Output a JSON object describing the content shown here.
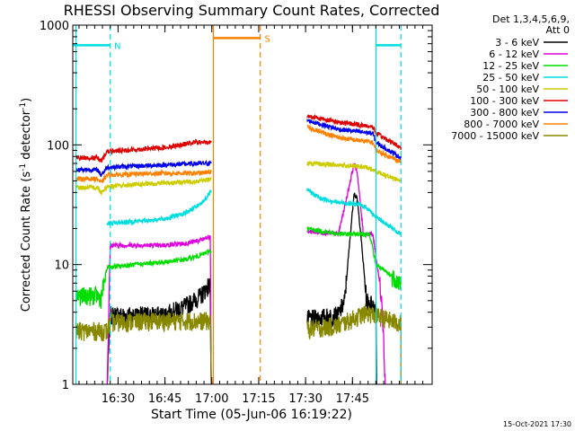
{
  "chart_data": {
    "type": "line",
    "title": "RHESSI Observing Summary Count Rates, Corrected",
    "xlabel": "Start Time (05-Jun-06 16:19:22)",
    "ylabel": "Corrected Count Rate (s⁻¹ detector⁻¹)",
    "ylog": true,
    "ylim": [
      1,
      1000
    ],
    "xlim_minutes": [
      16.0,
      131.0
    ],
    "x_ticks": [
      {
        "m": 30.5,
        "label": "16:30"
      },
      {
        "m": 45.5,
        "label": "16:45"
      },
      {
        "m": 60.5,
        "label": "17:00"
      },
      {
        "m": 75.5,
        "label": "17:15"
      },
      {
        "m": 90.5,
        "label": "17:30"
      },
      {
        "m": 105.5,
        "label": "17:45"
      }
    ],
    "y_ticks": [
      {
        "v": 1,
        "label": "1"
      },
      {
        "v": 10,
        "label": "10"
      },
      {
        "v": 100,
        "label": "100"
      },
      {
        "v": 1000,
        "label": "1000"
      }
    ],
    "legend_header": [
      "Det 1,3,4,5,6,9,",
      "Att 0"
    ],
    "series": [
      {
        "name": "3 - 6 keV",
        "color": "#000000",
        "segments": [
          [
            [
              27,
              1
            ],
            [
              28,
              3.8
            ],
            [
              45,
              3.8
            ],
            [
              52,
              4.5
            ],
            [
              57,
              5.5
            ],
            [
              59,
              6.5
            ],
            [
              60,
              6.8
            ],
            [
              60.3,
              1
            ]
          ],
          [
            [
              91,
              3.5
            ],
            [
              101,
              3.8
            ],
            [
              103,
              5
            ],
            [
              105,
              20
            ],
            [
              106,
              40
            ],
            [
              107,
              35
            ],
            [
              108,
              20
            ],
            [
              110,
              5
            ],
            [
              113,
              4.5
            ],
            [
              113.2,
              1
            ]
          ]
        ]
      },
      {
        "name": "6 - 12 keV",
        "color": "#dd00dd",
        "segments": [
          [
            [
              27,
              1
            ],
            [
              28,
              14.5
            ],
            [
              45,
              14.5
            ],
            [
              52,
              15
            ],
            [
              57,
              16
            ],
            [
              60,
              17
            ],
            [
              60.3,
              1
            ]
          ],
          [
            [
              91,
              19
            ],
            [
              101,
              18
            ],
            [
              104,
              40
            ],
            [
              106,
              70
            ],
            [
              107,
              60
            ],
            [
              109,
              18
            ],
            [
              112,
              18
            ],
            [
              115,
              5
            ],
            [
              116,
              1
            ]
          ]
        ]
      },
      {
        "name": "12 - 25 keV",
        "color": "#00dd00",
        "segments": [
          [
            [
              17,
              5.5
            ],
            [
              24,
              5.5
            ],
            [
              25,
              5.2
            ],
            [
              27,
              9.5
            ],
            [
              45,
              10.5
            ],
            [
              52,
              11
            ],
            [
              57,
              12
            ],
            [
              60,
              13
            ],
            [
              60.3,
              13
            ]
          ],
          [
            [
              91,
              20
            ],
            [
              101,
              18
            ],
            [
              107,
              18
            ],
            [
              111,
              18
            ],
            [
              113,
              10
            ],
            [
              118,
              8
            ],
            [
              121,
              7
            ],
            [
              121,
              7
            ]
          ]
        ]
      },
      {
        "name": "25 - 50 keV",
        "color": "#00dddd",
        "segments": [
          [
            [
              27,
              22
            ],
            [
              45,
              24
            ],
            [
              52,
              27
            ],
            [
              57,
              32
            ],
            [
              60,
              40
            ],
            [
              60.3,
              40
            ]
          ],
          [
            [
              91,
              42
            ],
            [
              95,
              36
            ],
            [
              101,
              33
            ],
            [
              107,
              32
            ],
            [
              110,
              30
            ],
            [
              113,
              25
            ],
            [
              121,
              18
            ],
            [
              121,
              18
            ]
          ]
        ]
      },
      {
        "name": "50 - 100 keV",
        "color": "#cccc00",
        "segments": [
          [
            [
              17,
              44
            ],
            [
              24,
              44
            ],
            [
              25,
              40
            ],
            [
              27,
              45
            ],
            [
              45,
              48
            ],
            [
              57,
              50
            ],
            [
              60,
              52
            ],
            [
              60.3,
              52
            ]
          ],
          [
            [
              91,
              70
            ],
            [
              101,
              68
            ],
            [
              110,
              65
            ],
            [
              113,
              60
            ],
            [
              121,
              50
            ],
            [
              121,
              50
            ]
          ]
        ]
      },
      {
        "name": "100 - 300 keV",
        "color": "#dd0000",
        "segments": [
          [
            [
              17,
              78
            ],
            [
              24,
              78
            ],
            [
              25,
              72
            ],
            [
              27,
              88
            ],
            [
              45,
              95
            ],
            [
              55,
              105
            ],
            [
              60,
              105
            ],
            [
              60.3,
              105
            ]
          ],
          [
            [
              91,
              175
            ],
            [
              101,
              155
            ],
            [
              112,
              142
            ],
            [
              113,
              125
            ],
            [
              121,
              95
            ],
            [
              121,
              95
            ]
          ]
        ]
      },
      {
        "name": "300 - 800 keV",
        "color": "#0000ee",
        "segments": [
          [
            [
              17,
              62
            ],
            [
              24,
              62
            ],
            [
              25,
              56
            ],
            [
              27,
              65
            ],
            [
              45,
              68
            ],
            [
              57,
              70
            ],
            [
              60,
              70
            ],
            [
              60.3,
              70
            ]
          ],
          [
            [
              91,
              160
            ],
            [
              101,
              135
            ],
            [
              112,
              125
            ],
            [
              113,
              105
            ],
            [
              121,
              78
            ],
            [
              121,
              78
            ]
          ]
        ]
      },
      {
        "name": "800 - 7000 keV",
        "color": "#ff8000",
        "segments": [
          [
            [
              17,
              52
            ],
            [
              24,
              52
            ],
            [
              25,
              48
            ],
            [
              27,
              56
            ],
            [
              45,
              58
            ],
            [
              57,
              58
            ],
            [
              60,
              60
            ],
            [
              60.3,
              60
            ]
          ],
          [
            [
              91,
              140
            ],
            [
              101,
              115
            ],
            [
              112,
              105
            ],
            [
              113,
              90
            ],
            [
              121,
              72
            ],
            [
              121,
              72
            ]
          ]
        ]
      },
      {
        "name": "7000 - 15000 keV",
        "color": "#888800",
        "segments": [
          [
            [
              17,
              2.8
            ],
            [
              27,
              2.8
            ],
            [
              28,
              3.3
            ],
            [
              45,
              3.4
            ],
            [
              60,
              3.4
            ],
            [
              60.3,
              1
            ]
          ],
          [
            [
              91,
              2.9
            ],
            [
              101,
              3.1
            ],
            [
              110,
              4.0
            ],
            [
              121,
              3.2
            ],
            [
              121,
              1
            ]
          ]
        ]
      }
    ],
    "markers": [
      {
        "label": "N",
        "color": "#00dddd",
        "level": 680,
        "spans": [
          [
            16,
            28
          ]
        ],
        "solid_x": [
          17,
          113
        ],
        "dashed_x": [
          28,
          121
        ],
        "bars": [
          [
            113,
            121
          ]
        ]
      },
      {
        "label": "S",
        "color": "#ff8000",
        "level": 780,
        "spans": [
          [
            61,
            76
          ]
        ],
        "solid_x": [
          61
        ],
        "dashed_x": [
          76
        ]
      }
    ]
  },
  "footer": {
    "date": "15-Oct-2021 17:30"
  }
}
